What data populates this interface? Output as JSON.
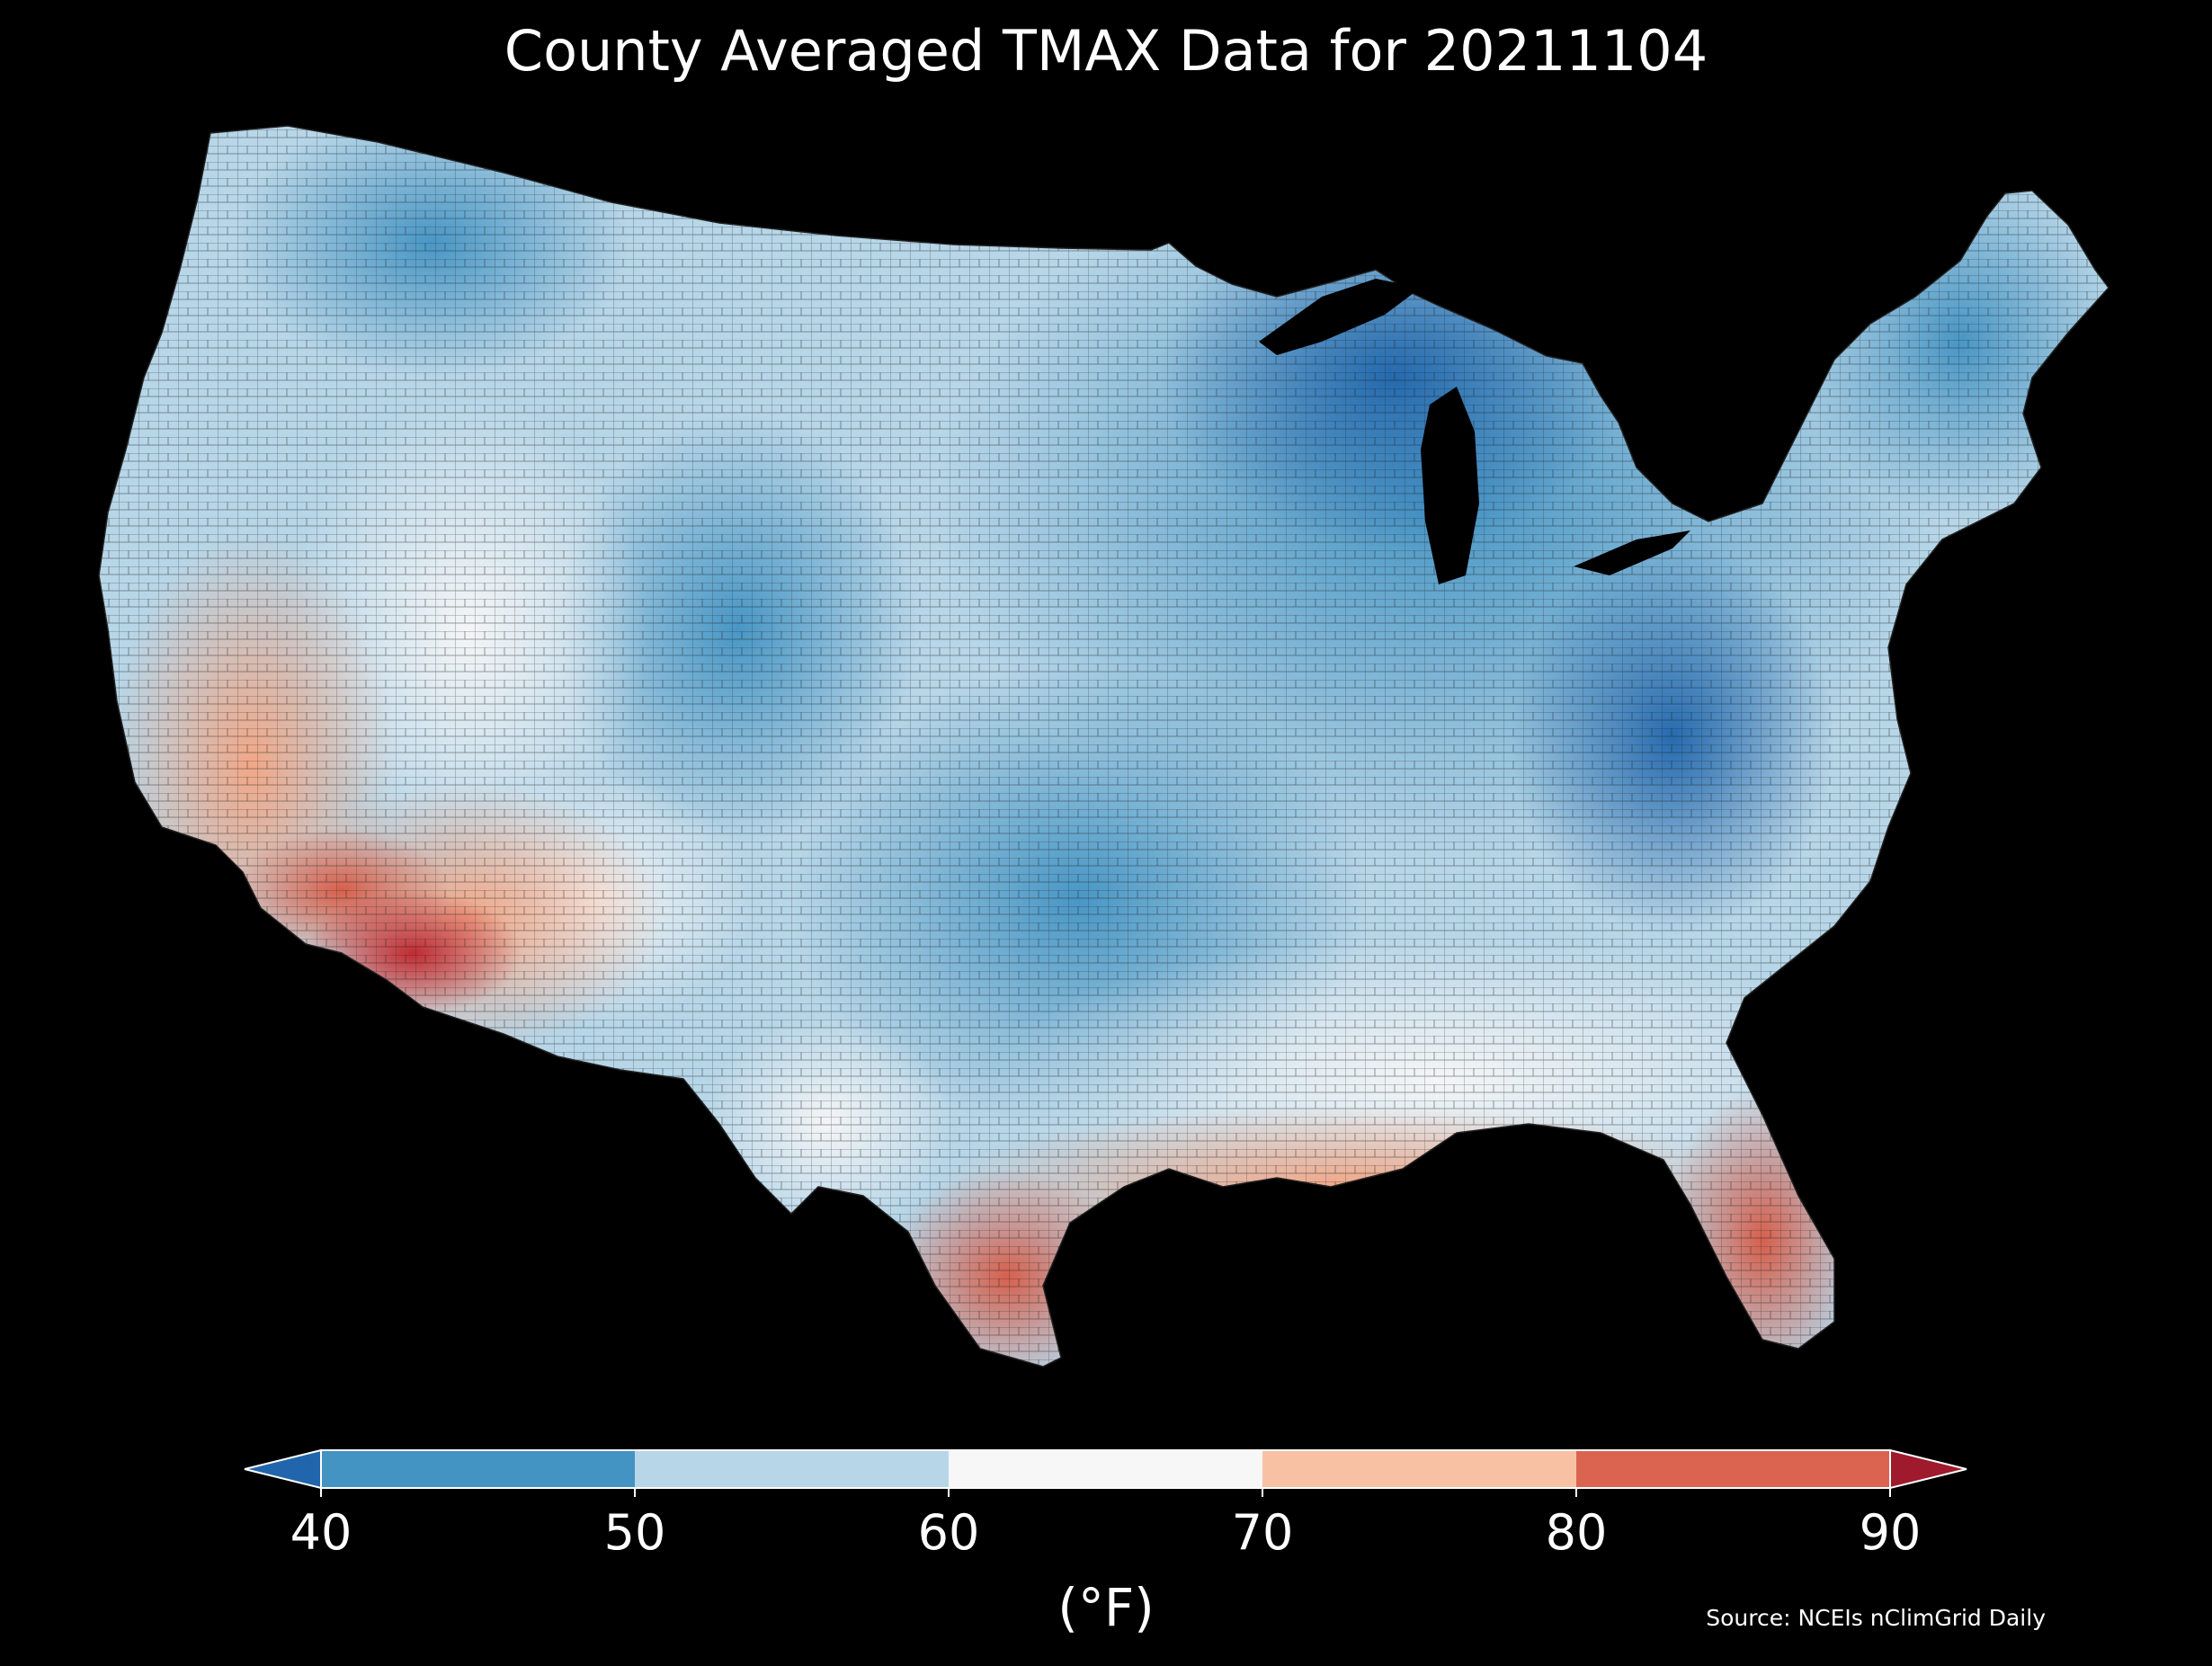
{
  "title": "County Averaged TMAX Data for 20211104",
  "colorbar": {
    "unit_label": "(°F)",
    "ticks": [
      "40",
      "50",
      "60",
      "70",
      "80",
      "90"
    ],
    "bins": [
      {
        "range": "<40",
        "color": "#2166ac"
      },
      {
        "range": "40-50",
        "color": "#4393c3"
      },
      {
        "range": "50-60",
        "color": "#b7d6e8"
      },
      {
        "range": "60-70",
        "color": "#f7f7f7"
      },
      {
        "range": "70-80",
        "color": "#f8c1a3"
      },
      {
        "range": "80-90",
        "color": "#db6451"
      },
      {
        "range": ">90",
        "color": "#9e1a2c"
      }
    ]
  },
  "source": "Source: NCEIs nClimGrid Daily",
  "map": {
    "region": "Contiguous United States",
    "unit": "county",
    "variable": "TMAX",
    "date": "20211104",
    "colors": {
      "very_cold": "#2166ac",
      "cold": "#4393c3",
      "cool": "#92c5de",
      "mild": "#d1e5f0",
      "neutral": "#f7f7f7",
      "warm": "#f8c1a3",
      "hot": "#e58267",
      "very_hot": "#c7353a",
      "background": "#000000",
      "county_border": "#1a1a1a"
    }
  }
}
